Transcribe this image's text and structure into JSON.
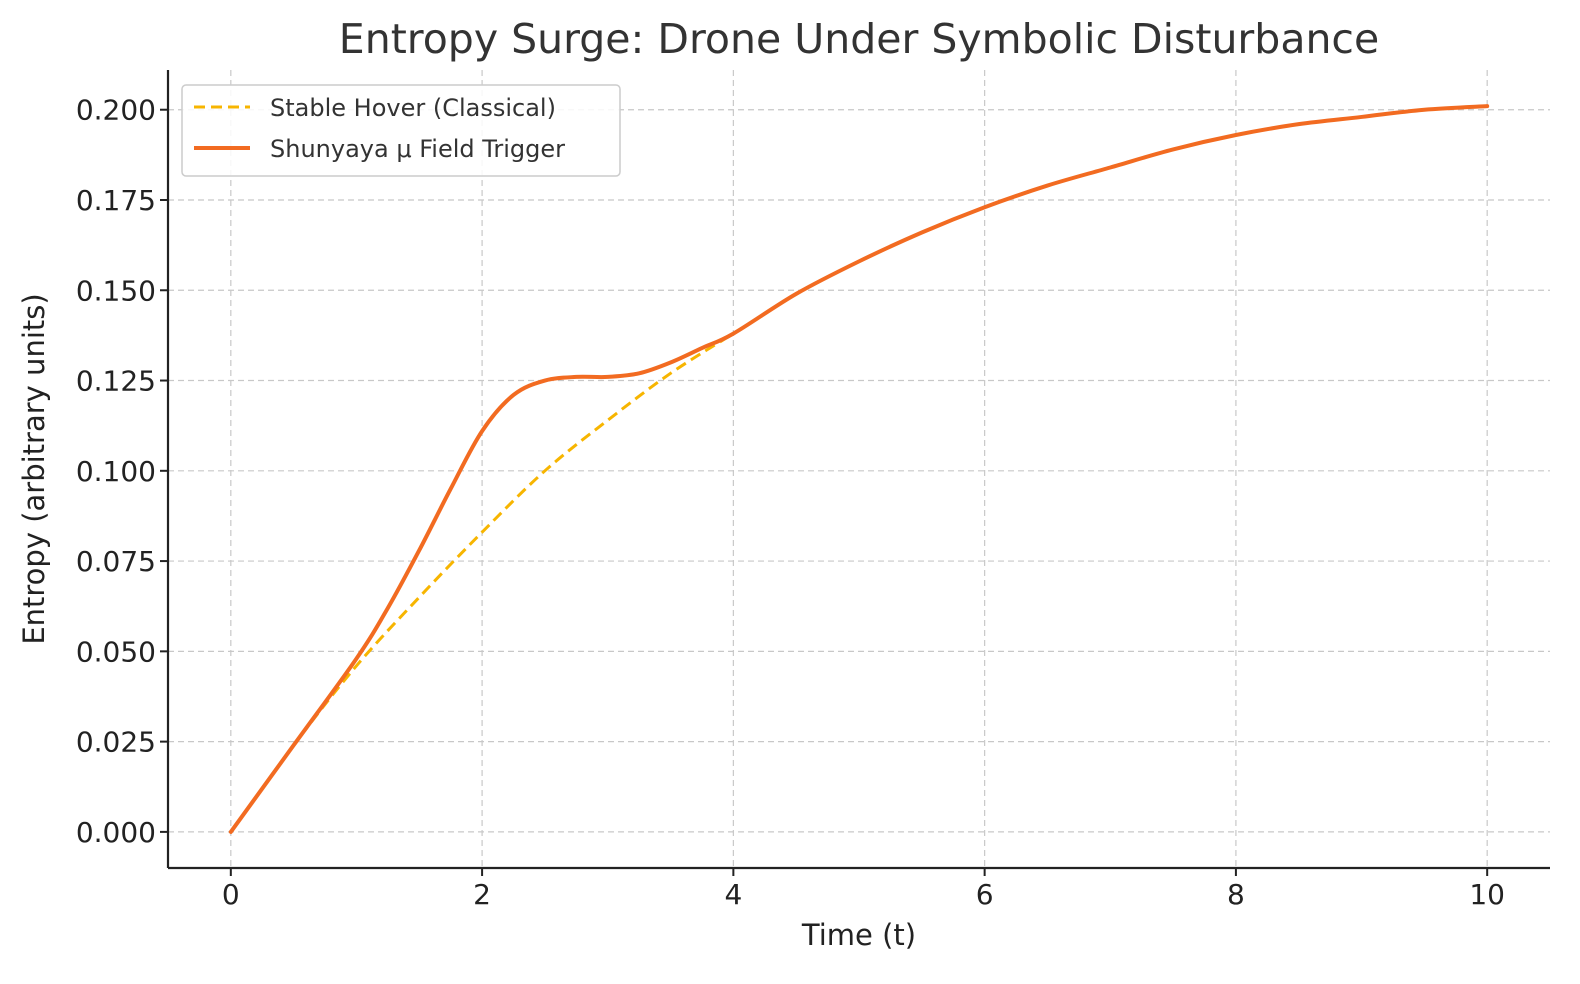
{
  "chart_data": {
    "type": "line",
    "title": "Entropy Surge: Drone Under Symbolic Disturbance",
    "xlabel": "Time (t)",
    "ylabel": "Entropy (arbitrary units)",
    "xlim": [
      -0.5,
      10.5
    ],
    "ylim": [
      -0.01,
      0.211
    ],
    "xticks": [
      0,
      2,
      4,
      6,
      8,
      10
    ],
    "xtick_labels": [
      "0",
      "2",
      "4",
      "6",
      "8",
      "10"
    ],
    "yticks": [
      0.0,
      0.025,
      0.05,
      0.075,
      0.1,
      0.125,
      0.15,
      0.175,
      0.2
    ],
    "ytick_labels": [
      "0.000",
      "0.025",
      "0.050",
      "0.075",
      "0.100",
      "0.125",
      "0.150",
      "0.175",
      "0.200"
    ],
    "grid": true,
    "legend_position": "top-left",
    "series": [
      {
        "name": "Stable Hover (Classical)",
        "color": "#f7b500",
        "style": "dashed",
        "x": [
          0,
          0.5,
          1,
          1.5,
          2,
          2.5,
          3,
          3.5,
          4
        ],
        "y": [
          0.0,
          0.024,
          0.046,
          0.065,
          0.083,
          0.1,
          0.114,
          0.127,
          0.138
        ]
      },
      {
        "name": "Shunyaya μ Field Trigger",
        "color": "#f26b21",
        "style": "solid",
        "x": [
          0,
          0.5,
          1,
          1.25,
          1.5,
          1.75,
          2,
          2.25,
          2.5,
          2.75,
          3,
          3.25,
          3.5,
          3.75,
          4,
          4.5,
          5,
          5.5,
          6,
          6.5,
          7,
          7.5,
          8,
          8.5,
          9,
          9.5,
          10
        ],
        "y": [
          0.0,
          0.024,
          0.048,
          0.062,
          0.078,
          0.095,
          0.111,
          0.121,
          0.125,
          0.126,
          0.126,
          0.127,
          0.13,
          0.134,
          0.138,
          0.149,
          0.158,
          0.166,
          0.173,
          0.179,
          0.184,
          0.189,
          0.193,
          0.196,
          0.198,
          0.2,
          0.201
        ]
      }
    ]
  }
}
